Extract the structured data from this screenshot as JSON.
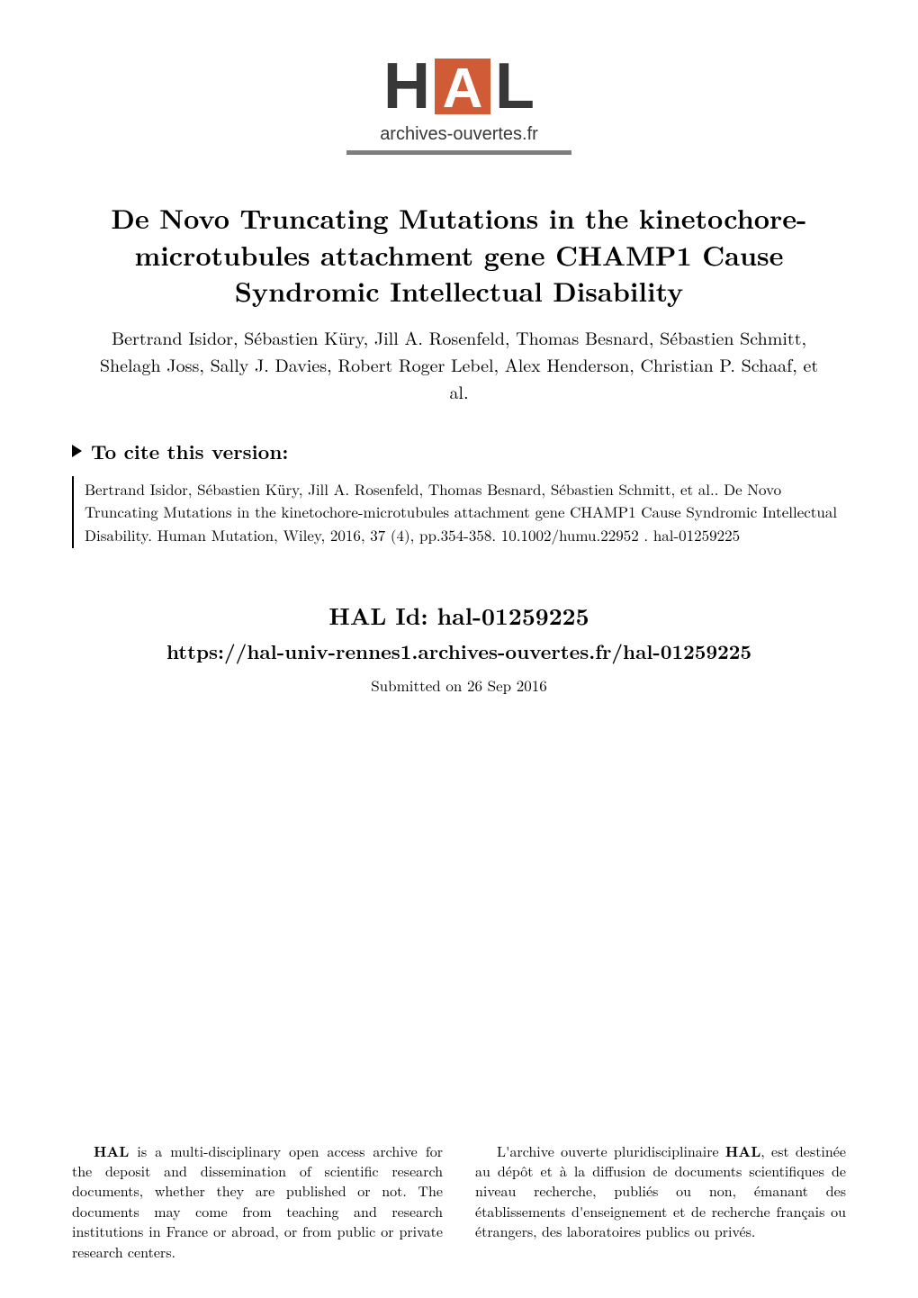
{
  "logo": {
    "letters": {
      "h": "H",
      "a": "A",
      "l": "L"
    },
    "subtitle": "archives-ouvertes.fr",
    "colors": {
      "letter": "#383838",
      "a_box": "#cf5c36",
      "a_letter": "#ffffff",
      "divider": "#7e7e7e"
    }
  },
  "title": "De Novo Truncating Mutations in the kinetochore-microtubules attachment gene CHAMP1 Cause Syndromic Intellectual Disability",
  "authors": "Bertrand Isidor, Sébastien Küry, Jill A. Rosenfeld, Thomas Besnard, Sébastien Schmitt, Shelagh Joss, Sally J. Davies, Robert Roger Lebel, Alex Henderson, Christian P. Schaaf, et al.",
  "cite": {
    "heading": "To cite this version:",
    "body_parts": [
      "Bertrand Isidor, Sébastien Küry, Jill A. Rosenfeld, Thomas Besnard, Sébastien Schmitt, et al.. De Novo Truncating Mutations in the kinetochore-microtubules attachment gene CHAMP1 Cause Syndromic Intellectual Disability.   Human Mutation, Wiley, 2016, 37 (4), pp.354-358. ",
      "10.1002/humu.22952",
      " .  ",
      "hal-01259225"
    ]
  },
  "hal_id": {
    "id_line": "HAL Id:  hal-01259225",
    "url_line": "https://hal-univ-rennes1.archives-ouvertes.fr/hal-01259225",
    "submitted": "Submitted on 26 Sep 2016"
  },
  "license": {
    "left_lead_strong": "HAL",
    "left_lead_rest": " is a multi-disciplinary open access archive for the deposit and dissemination of scientific research documents, whether they are published or not.  The documents may come from teaching and research institutions in France or abroad, or from public or private research centers.",
    "right_lead_before": "L'archive ouverte pluridisciplinaire ",
    "right_lead_strong": "HAL",
    "right_lead_after": ", est destinée au dépôt et à la diffusion de documents scientifiques de niveau recherche, publiés ou non, émanant des établissements d'enseignement et de recherche français ou étrangers, des laboratoires publics ou privés."
  },
  "typography": {
    "title_fontsize": 30,
    "authors_fontsize": 20,
    "cite_heading_fontsize": 22,
    "cite_body_fontsize": 17,
    "hal_id_fontsize": 26,
    "hal_url_fontsize": 22,
    "submitted_fontsize": 17,
    "license_fontsize": 16
  },
  "colors": {
    "background": "#ffffff",
    "text": "#000000"
  }
}
